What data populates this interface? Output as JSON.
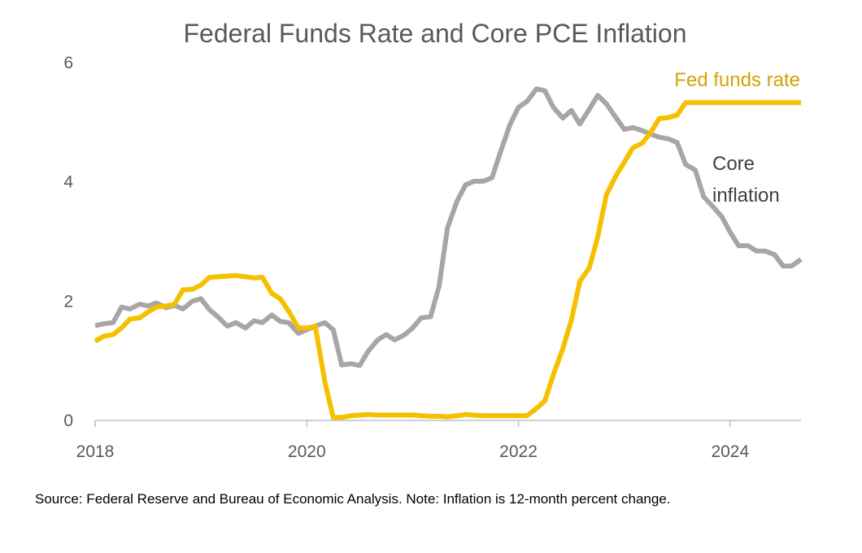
{
  "chart_data": {
    "type": "line",
    "title": "Federal Funds Rate and Core PCE Inflation",
    "xlabel": "",
    "ylabel": "",
    "xlim": [
      2018.0,
      2024.67
    ],
    "ylim": [
      0,
      6
    ],
    "x_ticks": [
      2018,
      2020,
      2022,
      2024
    ],
    "y_ticks": [
      0,
      2,
      4,
      6
    ],
    "grid": false,
    "legend": "none",
    "series": [
      {
        "name": "Fed funds rate",
        "color": "#F5C000",
        "points": [
          [
            2018.0,
            1.33
          ],
          [
            2018.08,
            1.41
          ],
          [
            2018.17,
            1.44
          ],
          [
            2018.25,
            1.55
          ],
          [
            2018.33,
            1.7
          ],
          [
            2018.42,
            1.72
          ],
          [
            2018.5,
            1.82
          ],
          [
            2018.58,
            1.9
          ],
          [
            2018.67,
            1.92
          ],
          [
            2018.75,
            1.95
          ],
          [
            2018.83,
            2.19
          ],
          [
            2018.92,
            2.2
          ],
          [
            2019.0,
            2.27
          ],
          [
            2019.08,
            2.4
          ],
          [
            2019.17,
            2.41
          ],
          [
            2019.25,
            2.42
          ],
          [
            2019.33,
            2.43
          ],
          [
            2019.42,
            2.41
          ],
          [
            2019.5,
            2.39
          ],
          [
            2019.58,
            2.4
          ],
          [
            2019.67,
            2.13
          ],
          [
            2019.75,
            2.04
          ],
          [
            2019.83,
            1.83
          ],
          [
            2019.92,
            1.55
          ],
          [
            2020.0,
            1.55
          ],
          [
            2020.08,
            1.58
          ],
          [
            2020.17,
            0.65
          ],
          [
            2020.25,
            0.05
          ],
          [
            2020.33,
            0.05
          ],
          [
            2020.42,
            0.08
          ],
          [
            2020.5,
            0.09
          ],
          [
            2020.58,
            0.1
          ],
          [
            2020.67,
            0.09
          ],
          [
            2020.75,
            0.09
          ],
          [
            2020.83,
            0.09
          ],
          [
            2020.92,
            0.09
          ],
          [
            2021.0,
            0.09
          ],
          [
            2021.08,
            0.08
          ],
          [
            2021.17,
            0.07
          ],
          [
            2021.25,
            0.07
          ],
          [
            2021.33,
            0.06
          ],
          [
            2021.42,
            0.08
          ],
          [
            2021.5,
            0.1
          ],
          [
            2021.58,
            0.09
          ],
          [
            2021.67,
            0.08
          ],
          [
            2021.75,
            0.08
          ],
          [
            2021.83,
            0.08
          ],
          [
            2021.92,
            0.08
          ],
          [
            2022.0,
            0.08
          ],
          [
            2022.08,
            0.08
          ],
          [
            2022.17,
            0.2
          ],
          [
            2022.25,
            0.33
          ],
          [
            2022.33,
            0.77
          ],
          [
            2022.42,
            1.21
          ],
          [
            2022.5,
            1.68
          ],
          [
            2022.58,
            2.33
          ],
          [
            2022.67,
            2.56
          ],
          [
            2022.75,
            3.08
          ],
          [
            2022.83,
            3.78
          ],
          [
            2022.92,
            4.1
          ],
          [
            2023.0,
            4.33
          ],
          [
            2023.08,
            4.57
          ],
          [
            2023.17,
            4.65
          ],
          [
            2023.25,
            4.83
          ],
          [
            2023.33,
            5.06
          ],
          [
            2023.42,
            5.08
          ],
          [
            2023.5,
            5.12
          ],
          [
            2023.58,
            5.33
          ],
          [
            2023.67,
            5.33
          ],
          [
            2023.75,
            5.33
          ],
          [
            2023.83,
            5.33
          ],
          [
            2023.92,
            5.33
          ],
          [
            2024.0,
            5.33
          ],
          [
            2024.08,
            5.33
          ],
          [
            2024.17,
            5.33
          ],
          [
            2024.25,
            5.33
          ],
          [
            2024.33,
            5.33
          ],
          [
            2024.42,
            5.33
          ],
          [
            2024.5,
            5.33
          ],
          [
            2024.58,
            5.33
          ],
          [
            2024.67,
            5.33
          ]
        ]
      },
      {
        "name": "Core inflation",
        "color": "#A9A5A6",
        "points": [
          [
            2018.0,
            1.59
          ],
          [
            2018.08,
            1.62
          ],
          [
            2018.17,
            1.64
          ],
          [
            2018.25,
            1.9
          ],
          [
            2018.33,
            1.87
          ],
          [
            2018.42,
            1.95
          ],
          [
            2018.5,
            1.92
          ],
          [
            2018.58,
            1.97
          ],
          [
            2018.67,
            1.89
          ],
          [
            2018.75,
            1.93
          ],
          [
            2018.83,
            1.87
          ],
          [
            2018.92,
            2.0
          ],
          [
            2019.0,
            2.04
          ],
          [
            2019.08,
            1.86
          ],
          [
            2019.17,
            1.72
          ],
          [
            2019.25,
            1.58
          ],
          [
            2019.33,
            1.64
          ],
          [
            2019.42,
            1.55
          ],
          [
            2019.5,
            1.67
          ],
          [
            2019.58,
            1.64
          ],
          [
            2019.67,
            1.77
          ],
          [
            2019.75,
            1.66
          ],
          [
            2019.83,
            1.64
          ],
          [
            2019.92,
            1.46
          ],
          [
            2020.0,
            1.52
          ],
          [
            2020.08,
            1.58
          ],
          [
            2020.17,
            1.64
          ],
          [
            2020.25,
            1.52
          ],
          [
            2020.33,
            0.93
          ],
          [
            2020.42,
            0.95
          ],
          [
            2020.5,
            0.92
          ],
          [
            2020.58,
            1.16
          ],
          [
            2020.67,
            1.35
          ],
          [
            2020.75,
            1.44
          ],
          [
            2020.83,
            1.35
          ],
          [
            2020.92,
            1.43
          ],
          [
            2021.0,
            1.55
          ],
          [
            2021.08,
            1.72
          ],
          [
            2021.17,
            1.74
          ],
          [
            2021.25,
            2.25
          ],
          [
            2021.33,
            3.23
          ],
          [
            2021.42,
            3.68
          ],
          [
            2021.5,
            3.95
          ],
          [
            2021.58,
            4.01
          ],
          [
            2021.67,
            4.01
          ],
          [
            2021.75,
            4.07
          ],
          [
            2021.83,
            4.5
          ],
          [
            2021.92,
            4.96
          ],
          [
            2022.0,
            5.25
          ],
          [
            2022.08,
            5.35
          ],
          [
            2022.17,
            5.56
          ],
          [
            2022.25,
            5.53
          ],
          [
            2022.33,
            5.25
          ],
          [
            2022.42,
            5.07
          ],
          [
            2022.5,
            5.2
          ],
          [
            2022.58,
            4.97
          ],
          [
            2022.67,
            5.22
          ],
          [
            2022.75,
            5.45
          ],
          [
            2022.83,
            5.31
          ],
          [
            2022.92,
            5.08
          ],
          [
            2023.0,
            4.88
          ],
          [
            2023.08,
            4.91
          ],
          [
            2023.17,
            4.86
          ],
          [
            2023.25,
            4.8
          ],
          [
            2023.33,
            4.75
          ],
          [
            2023.42,
            4.72
          ],
          [
            2023.5,
            4.66
          ],
          [
            2023.58,
            4.29
          ],
          [
            2023.67,
            4.2
          ],
          [
            2023.75,
            3.75
          ],
          [
            2023.83,
            3.6
          ],
          [
            2023.92,
            3.42
          ],
          [
            2024.0,
            3.16
          ],
          [
            2024.08,
            2.93
          ],
          [
            2024.17,
            2.93
          ],
          [
            2024.25,
            2.84
          ],
          [
            2024.33,
            2.84
          ],
          [
            2024.42,
            2.78
          ],
          [
            2024.5,
            2.59
          ],
          [
            2024.58,
            2.59
          ],
          [
            2024.67,
            2.7
          ]
        ]
      }
    ],
    "annotations": {
      "fed_label": "Fed funds rate",
      "core_label_line1": "Core",
      "core_label_line2": "inflation"
    },
    "source": "Source: Federal Reserve and Bureau of Economic Analysis. Note: Inflation is 12-month percent change."
  },
  "colors": {
    "fed": "#F5C000",
    "fed_label": "#D4A206",
    "core": "#A9A5A6",
    "core_label": "#404040",
    "axis": "#BFBFBF",
    "text": "#595959"
  }
}
